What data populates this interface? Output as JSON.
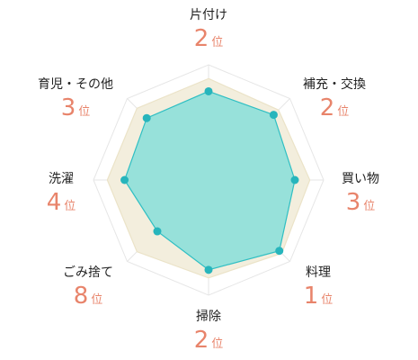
{
  "chart_data": {
    "type": "radar",
    "title": "",
    "axes": [
      "片付け",
      "補充・交換",
      "買い物",
      "料理",
      "掃除",
      "ごみ捨て",
      "洗濯",
      "育児・その他"
    ],
    "rank_suffix": "位",
    "ranks": [
      "2",
      "2",
      "3",
      "1",
      "2",
      "8",
      "4",
      "3"
    ],
    "range": [
      0,
      1
    ],
    "rings": 4,
    "series": [
      {
        "values": [
          0.88,
          0.86,
          0.88,
          0.9,
          0.85,
          0.88,
          0.88,
          0.88
        ],
        "fill": "#f3eedd",
        "stroke": "#ebe3c8",
        "markers": false
      },
      {
        "values": [
          0.77,
          0.8,
          0.75,
          0.87,
          0.78,
          0.63,
          0.73,
          0.76
        ],
        "fill": "#6fdcd8",
        "fill_opacity": 0.7,
        "stroke": "#2fbfc3",
        "marker_color": "#27b5bc",
        "markers": true
      }
    ],
    "grid_color": "#e6e6e6",
    "rank_color": "#e8846b"
  }
}
